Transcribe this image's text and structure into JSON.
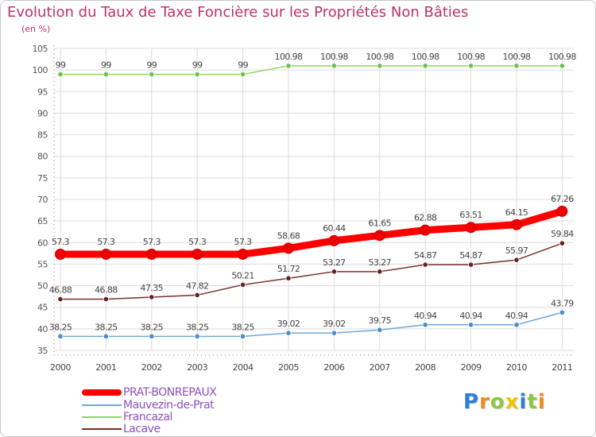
{
  "title": "Evolution du Taux de Taxe Foncière sur les Propriétés Non Bâties",
  "subtitle": "(en %)",
  "chart_data": {
    "type": "line",
    "x": [
      "2000",
      "2001",
      "2002",
      "2003",
      "2004",
      "2005",
      "2006",
      "2007",
      "2008",
      "2009",
      "2010",
      "2011"
    ],
    "ylim": [
      35,
      105
    ],
    "yticks": [
      35,
      40,
      45,
      50,
      55,
      60,
      65,
      70,
      75,
      80,
      85,
      90,
      95,
      100,
      105
    ],
    "grid": true,
    "series": [
      {
        "name": "Francazal",
        "color": "#8ed65a",
        "point_color": "#6cc24a",
        "values": [
          99,
          99,
          99,
          99,
          99,
          100.98,
          100.98,
          100.98,
          100.98,
          100.98,
          100.98,
          100.98
        ],
        "labels": [
          "99",
          "99",
          "99",
          "99",
          "99",
          "100.98",
          "100.98",
          "100.98",
          "100.98",
          "100.98",
          "100.98",
          "100.98"
        ]
      },
      {
        "name": "PRAT-BONREPAUX",
        "color": "#ff0000",
        "point_color": "#ee0000",
        "values": [
          57.3,
          57.3,
          57.3,
          57.3,
          57.3,
          58.68,
          60.44,
          61.65,
          62.88,
          63.51,
          64.15,
          67.26
        ],
        "labels": [
          "57.3",
          "57.3",
          "57.3",
          "57.3",
          "57.3",
          "58.68",
          "60.44",
          "61.65",
          "62.88",
          "63.51",
          "64.15",
          "67.26"
        ]
      },
      {
        "name": "Lacave",
        "color": "#7a2e2e",
        "point_color": "#6b2020",
        "values": [
          46.88,
          46.88,
          47.35,
          47.82,
          50.21,
          51.72,
          53.27,
          53.27,
          54.87,
          54.87,
          55.97,
          59.84
        ],
        "labels": [
          "46.88",
          "46.88",
          "47.35",
          "47.82",
          "50.21",
          "51.72",
          "53.27",
          "53.27",
          "54.87",
          "54.87",
          "55.97",
          "59.84"
        ]
      },
      {
        "name": "Mauvezin-de-Prat",
        "color": "#6fa8dc",
        "point_color": "#4a8cc8",
        "values": [
          38.25,
          38.25,
          38.25,
          38.25,
          38.25,
          39.02,
          39.02,
          39.75,
          40.94,
          40.94,
          40.94,
          43.79
        ],
        "labels": [
          "38.25",
          "38.25",
          "38.25",
          "38.25",
          "38.25",
          "39.02",
          "39.02",
          "39.75",
          "40.94",
          "40.94",
          "40.94",
          "43.79"
        ]
      }
    ]
  },
  "legend": [
    {
      "name": "PRAT-BONREPAUX",
      "color": "#ff0000"
    },
    {
      "name": "Mauvezin-de-Prat",
      "color": "#6fa8dc"
    },
    {
      "name": "Francazal",
      "color": "#8ed65a"
    },
    {
      "name": "Lacave",
      "color": "#7a2e2e"
    }
  ],
  "logo": {
    "letters": [
      "P",
      "r",
      "o",
      "x",
      "i",
      "t",
      "i"
    ],
    "colors": [
      "#2a7fd6",
      "#f08a1c",
      "#8cc63f",
      "#f2c200",
      "#2a7fd6",
      "#8cc63f",
      "#f08a1c"
    ]
  }
}
